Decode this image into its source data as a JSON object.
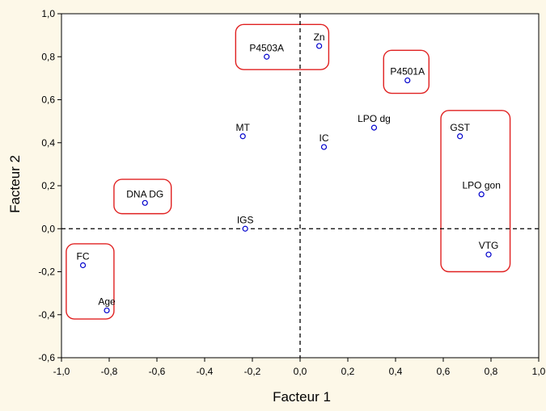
{
  "chart_data": {
    "type": "scatter",
    "title": "",
    "xlabel": "Facteur 1",
    "ylabel": "Facteur 2",
    "xlim": [
      -1.0,
      1.0
    ],
    "ylim": [
      -0.6,
      1.0
    ],
    "xticks": [
      -1.0,
      -0.8,
      -0.6,
      -0.4,
      -0.2,
      0.0,
      0.2,
      0.4,
      0.6,
      0.8,
      1.0
    ],
    "yticks": [
      -0.6,
      -0.4,
      -0.2,
      0.0,
      0.2,
      0.4,
      0.6,
      0.8,
      1.0
    ],
    "xtick_labels": [
      "-1,0",
      "-0,8",
      "-0,6",
      "-0,4",
      "-0,2",
      "0,0",
      "0,2",
      "0,4",
      "0,6",
      "0,8",
      "1,0"
    ],
    "ytick_labels": [
      "-0,6",
      "-0,4",
      "-0,2",
      "0,0",
      "0,2",
      "0,4",
      "0,6",
      "0,8",
      "1,0"
    ],
    "grid": false,
    "reference_lines": {
      "x": 0.0,
      "y": 0.0,
      "style": "dashed"
    },
    "marker_color": "#0000cc",
    "highlight_color": "#e02020",
    "points": [
      {
        "label": "Zn",
        "x": 0.08,
        "y": 0.85
      },
      {
        "label": "P4503A",
        "x": -0.14,
        "y": 0.8
      },
      {
        "label": "P4501A",
        "x": 0.45,
        "y": 0.69
      },
      {
        "label": "LPO dg",
        "x": 0.31,
        "y": 0.47
      },
      {
        "label": "GST",
        "x": 0.67,
        "y": 0.43
      },
      {
        "label": "MT",
        "x": -0.24,
        "y": 0.43
      },
      {
        "label": "IC",
        "x": 0.1,
        "y": 0.38
      },
      {
        "label": "LPO gon",
        "x": 0.76,
        "y": 0.16
      },
      {
        "label": "DNA DG",
        "x": -0.65,
        "y": 0.12
      },
      {
        "label": "IGS",
        "x": -0.23,
        "y": 0.0
      },
      {
        "label": "VTG",
        "x": 0.79,
        "y": -0.12
      },
      {
        "label": "FC",
        "x": -0.91,
        "y": -0.17
      },
      {
        "label": "Age",
        "x": -0.81,
        "y": -0.38
      }
    ],
    "highlight_groups": [
      {
        "members": [
          "P4503A",
          "Zn"
        ],
        "x": [
          -0.27,
          0.12
        ],
        "y": [
          0.74,
          0.95
        ]
      },
      {
        "members": [
          "P4501A"
        ],
        "x": [
          0.35,
          0.54
        ],
        "y": [
          0.63,
          0.83
        ]
      },
      {
        "members": [
          "GST",
          "LPO gon",
          "VTG"
        ],
        "x": [
          0.59,
          0.88
        ],
        "y": [
          -0.2,
          0.55
        ]
      },
      {
        "members": [
          "DNA DG"
        ],
        "x": [
          -0.78,
          -0.54
        ],
        "y": [
          0.07,
          0.23
        ]
      },
      {
        "members": [
          "FC",
          "Age"
        ],
        "x": [
          -0.98,
          -0.78
        ],
        "y": [
          -0.42,
          -0.07
        ]
      }
    ]
  }
}
